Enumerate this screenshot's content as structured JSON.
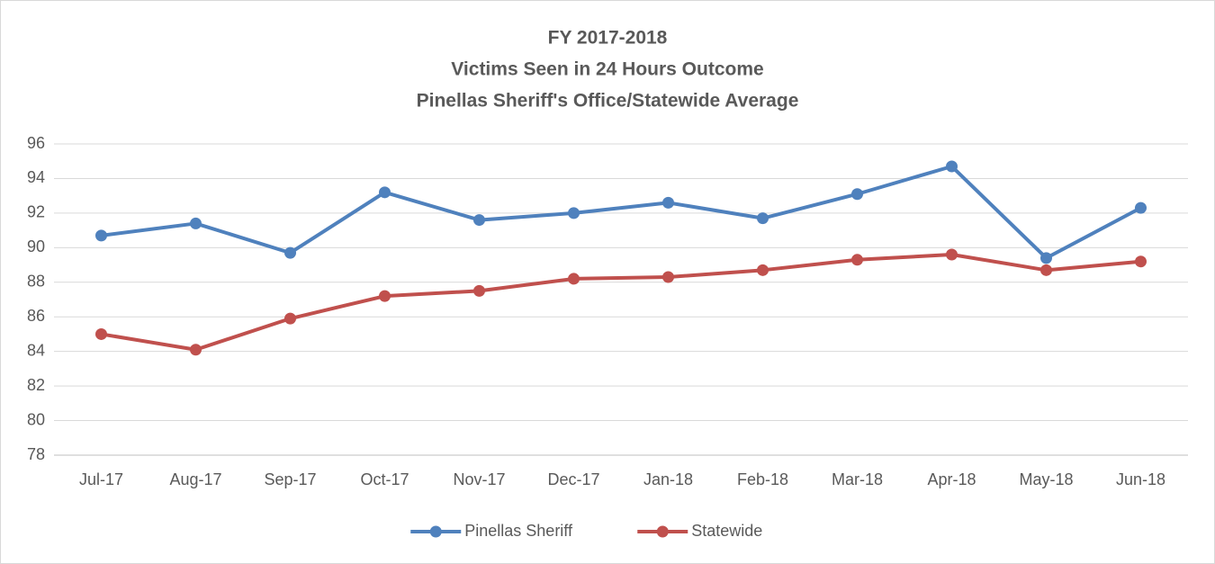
{
  "chart_data": {
    "type": "line",
    "title": [
      "FY 2017-2018",
      "Victims Seen in 24 Hours Outcome",
      "Pinellas Sheriff's Office/Statewide Average"
    ],
    "categories": [
      "Jul-17",
      "Aug-17",
      "Sep-17",
      "Oct-17",
      "Nov-17",
      "Dec-17",
      "Jan-18",
      "Feb-18",
      "Mar-18",
      "Apr-18",
      "May-18",
      "Jun-18"
    ],
    "series": [
      {
        "name": "Pinellas Sheriff",
        "color": "#4f81bd",
        "values": [
          90.7,
          91.4,
          89.7,
          93.2,
          91.6,
          92.0,
          92.6,
          91.7,
          93.1,
          94.7,
          89.4,
          92.3
        ]
      },
      {
        "name": "Statewide",
        "color": "#c0504d",
        "values": [
          85.0,
          84.1,
          85.9,
          87.2,
          87.5,
          88.2,
          88.3,
          88.7,
          89.3,
          89.6,
          88.7,
          89.2
        ]
      }
    ],
    "ylim": [
      78,
      96
    ],
    "yticks": [
      78,
      80,
      82,
      84,
      86,
      88,
      90,
      92,
      94,
      96
    ],
    "grid": true,
    "legend": "bottom"
  }
}
